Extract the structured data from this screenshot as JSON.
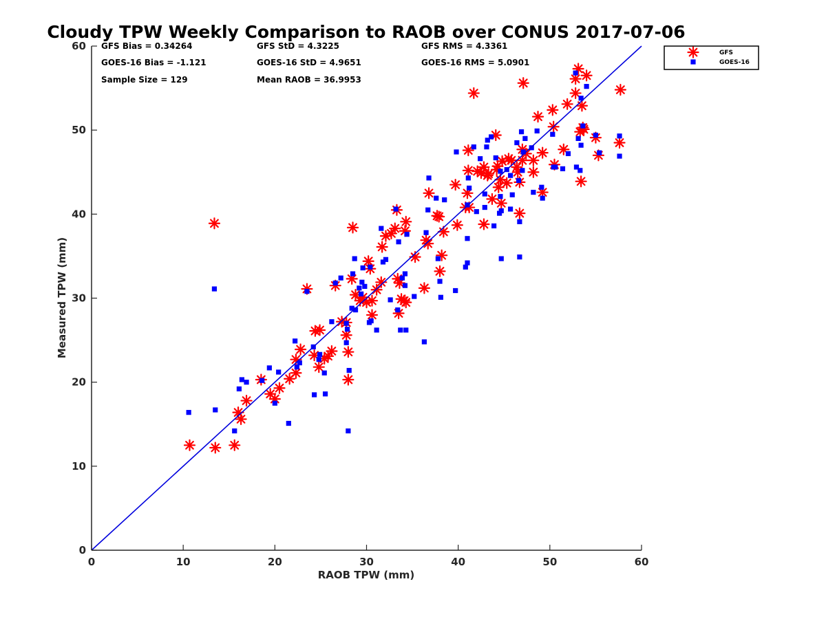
{
  "chart_data": {
    "type": "scatter",
    "title": "Cloudy TPW Weekly Comparison to RAOB over CONUS 2017-07-06",
    "xlabel": "RAOB TPW (mm)",
    "ylabel": "Measured TPW (mm)",
    "xlim": [
      0,
      60
    ],
    "ylim": [
      0,
      60
    ],
    "xticks": [
      0,
      10,
      20,
      30,
      40,
      50,
      60
    ],
    "yticks": [
      0,
      10,
      20,
      30,
      40,
      50,
      60
    ],
    "grid": false,
    "legend_position": "outside top-right",
    "reference_line": {
      "points": [
        [
          0,
          0
        ],
        [
          60,
          60
        ]
      ],
      "color": "#0000dd"
    },
    "stats": [
      [
        "GFS Bias = 0.34264",
        "GFS StD = 4.3225",
        "GFS RMS = 4.3361"
      ],
      [
        "GOES-16 Bias = -1.121",
        "GOES-16 StD = 4.9651",
        "GOES-16 RMS = 5.0901"
      ],
      [
        "Sample Size = 129",
        "Mean RAOB = 36.9953"
      ]
    ],
    "series": [
      {
        "name": "GFS",
        "marker": "asterisk",
        "color": "#ff0000",
        "points": [
          [
            10.7,
            12.5
          ],
          [
            13.5,
            12.2
          ],
          [
            15.6,
            12.5
          ],
          [
            13.4,
            38.9
          ],
          [
            16.0,
            16.4
          ],
          [
            16.3,
            15.6
          ],
          [
            16.9,
            17.8
          ],
          [
            18.5,
            20.3
          ],
          [
            19.5,
            18.6
          ],
          [
            20.0,
            18.0
          ],
          [
            20.5,
            19.3
          ],
          [
            21.6,
            20.4
          ],
          [
            22.3,
            21.1
          ],
          [
            22.3,
            22.7
          ],
          [
            22.8,
            23.9
          ],
          [
            23.5,
            31.1
          ],
          [
            24.3,
            23.2
          ],
          [
            24.4,
            26.1
          ],
          [
            24.9,
            26.2
          ],
          [
            24.8,
            21.8
          ],
          [
            25.4,
            22.8
          ],
          [
            25.8,
            23.1
          ],
          [
            26.2,
            23.7
          ],
          [
            26.6,
            31.5
          ],
          [
            27.3,
            27.2
          ],
          [
            27.8,
            27.1
          ],
          [
            27.8,
            25.6
          ],
          [
            28.0,
            23.6
          ],
          [
            28.0,
            20.3
          ],
          [
            28.5,
            38.4
          ],
          [
            28.4,
            32.3
          ],
          [
            28.8,
            30.4
          ],
          [
            29.3,
            29.7
          ],
          [
            29.6,
            30.1
          ],
          [
            30.0,
            29.5
          ],
          [
            30.2,
            34.4
          ],
          [
            30.4,
            33.5
          ],
          [
            30.6,
            29.7
          ],
          [
            30.6,
            28.0
          ],
          [
            31.1,
            31.0
          ],
          [
            31.6,
            31.9
          ],
          [
            31.7,
            36.1
          ],
          [
            32.1,
            37.4
          ],
          [
            32.7,
            37.7
          ],
          [
            33.1,
            38.3
          ],
          [
            33.3,
            40.5
          ],
          [
            33.4,
            32.3
          ],
          [
            33.5,
            28.2
          ],
          [
            33.6,
            31.8
          ],
          [
            33.8,
            29.9
          ],
          [
            34.1,
            29.7
          ],
          [
            34.2,
            38.0
          ],
          [
            34.3,
            39.1
          ],
          [
            34.3,
            29.5
          ],
          [
            35.3,
            34.9
          ],
          [
            36.3,
            31.2
          ],
          [
            36.5,
            36.9
          ],
          [
            36.7,
            36.5
          ],
          [
            36.8,
            42.5
          ],
          [
            37.7,
            39.8
          ],
          [
            37.9,
            39.7
          ],
          [
            38.0,
            33.2
          ],
          [
            38.2,
            35.1
          ],
          [
            38.4,
            37.9
          ],
          [
            39.7,
            43.5
          ],
          [
            39.9,
            38.7
          ],
          [
            40.8,
            40.8
          ],
          [
            41.0,
            42.5
          ],
          [
            41.1,
            45.2
          ],
          [
            41.1,
            47.6
          ],
          [
            41.2,
            40.8
          ],
          [
            41.7,
            54.4
          ],
          [
            42.1,
            45.1
          ],
          [
            42.5,
            44.9
          ],
          [
            42.8,
            38.8
          ],
          [
            42.8,
            45.6
          ],
          [
            43.2,
            44.6
          ],
          [
            43.3,
            44.8
          ],
          [
            43.7,
            41.8
          ],
          [
            44.1,
            49.4
          ],
          [
            44.2,
            45.3
          ],
          [
            44.3,
            45.7
          ],
          [
            44.4,
            43.2
          ],
          [
            44.6,
            44.1
          ],
          [
            44.7,
            41.3
          ],
          [
            44.8,
            46.3
          ],
          [
            45.3,
            43.7
          ],
          [
            45.5,
            46.6
          ],
          [
            45.8,
            46.4
          ],
          [
            46.4,
            45.6
          ],
          [
            46.5,
            45.0
          ],
          [
            46.7,
            43.8
          ],
          [
            46.7,
            40.1
          ],
          [
            47.0,
            46.4
          ],
          [
            47.0,
            47.7
          ],
          [
            47.1,
            55.6
          ],
          [
            47.4,
            47.2
          ],
          [
            48.2,
            46.4
          ],
          [
            48.2,
            45.0
          ],
          [
            48.7,
            51.6
          ],
          [
            49.2,
            42.6
          ],
          [
            49.2,
            47.3
          ],
          [
            50.3,
            52.4
          ],
          [
            50.4,
            50.4
          ],
          [
            50.5,
            45.9
          ],
          [
            51.5,
            47.7
          ],
          [
            51.9,
            53.1
          ],
          [
            52.8,
            56.1
          ],
          [
            52.8,
            54.4
          ],
          [
            53.1,
            57.3
          ],
          [
            53.3,
            49.8
          ],
          [
            53.4,
            43.9
          ],
          [
            53.5,
            52.9
          ],
          [
            53.6,
            50.3
          ],
          [
            53.7,
            50.1
          ],
          [
            54.0,
            56.5
          ],
          [
            55.0,
            49.1
          ],
          [
            55.3,
            47.0
          ],
          [
            57.6,
            48.5
          ],
          [
            57.7,
            54.8
          ]
        ]
      },
      {
        "name": "GOES-16",
        "marker": "square",
        "color": "#0000ff",
        "points": [
          [
            10.6,
            16.4
          ],
          [
            13.4,
            31.1
          ],
          [
            13.5,
            16.7
          ],
          [
            15.6,
            14.2
          ],
          [
            16.1,
            19.2
          ],
          [
            16.4,
            20.3
          ],
          [
            16.9,
            20.0
          ],
          [
            18.6,
            20.2
          ],
          [
            19.4,
            21.7
          ],
          [
            20.0,
            17.5
          ],
          [
            20.4,
            21.2
          ],
          [
            21.5,
            15.1
          ],
          [
            22.2,
            24.9
          ],
          [
            22.4,
            21.8
          ],
          [
            22.7,
            22.3
          ],
          [
            23.5,
            30.8
          ],
          [
            24.2,
            24.2
          ],
          [
            24.3,
            18.5
          ],
          [
            24.8,
            22.7
          ],
          [
            24.9,
            23.3
          ],
          [
            25.4,
            21.1
          ],
          [
            25.5,
            18.6
          ],
          [
            26.2,
            27.2
          ],
          [
            26.6,
            31.8
          ],
          [
            27.2,
            32.4
          ],
          [
            27.8,
            27.0
          ],
          [
            27.8,
            24.7
          ],
          [
            27.9,
            26.3
          ],
          [
            28.1,
            21.4
          ],
          [
            28.0,
            14.2
          ],
          [
            28.4,
            28.8
          ],
          [
            28.5,
            32.9
          ],
          [
            28.7,
            34.7
          ],
          [
            28.8,
            28.6
          ],
          [
            29.2,
            31.2
          ],
          [
            29.4,
            30.5
          ],
          [
            29.5,
            31.9
          ],
          [
            29.6,
            33.6
          ],
          [
            29.8,
            31.4
          ],
          [
            30.3,
            27.1
          ],
          [
            30.4,
            33.7
          ],
          [
            30.5,
            27.3
          ],
          [
            31.1,
            26.2
          ],
          [
            31.6,
            38.3
          ],
          [
            31.8,
            34.3
          ],
          [
            32.1,
            34.6
          ],
          [
            32.6,
            29.8
          ],
          [
            33.2,
            40.6
          ],
          [
            33.4,
            28.6
          ],
          [
            33.5,
            36.7
          ],
          [
            33.7,
            26.2
          ],
          [
            33.9,
            32.4
          ],
          [
            34.2,
            31.5
          ],
          [
            34.2,
            32.9
          ],
          [
            34.3,
            26.2
          ],
          [
            34.4,
            37.6
          ],
          [
            35.2,
            30.2
          ],
          [
            36.3,
            24.8
          ],
          [
            36.5,
            37.8
          ],
          [
            36.7,
            40.5
          ],
          [
            36.8,
            44.3
          ],
          [
            37.6,
            41.9
          ],
          [
            37.8,
            34.7
          ],
          [
            38.0,
            32.0
          ],
          [
            38.1,
            30.1
          ],
          [
            38.5,
            41.7
          ],
          [
            39.7,
            30.9
          ],
          [
            39.8,
            47.4
          ],
          [
            40.8,
            33.7
          ],
          [
            41.0,
            37.1
          ],
          [
            41.0,
            34.2
          ],
          [
            41.0,
            41.1
          ],
          [
            41.1,
            44.3
          ],
          [
            41.2,
            43.1
          ],
          [
            41.7,
            48.0
          ],
          [
            42.0,
            40.3
          ],
          [
            42.4,
            46.6
          ],
          [
            42.9,
            40.8
          ],
          [
            42.9,
            42.4
          ],
          [
            43.1,
            48.0
          ],
          [
            43.2,
            48.8
          ],
          [
            43.6,
            49.2
          ],
          [
            43.9,
            38.6
          ],
          [
            44.1,
            46.7
          ],
          [
            44.5,
            40.1
          ],
          [
            44.6,
            45.1
          ],
          [
            44.6,
            42.1
          ],
          [
            44.7,
            34.7
          ],
          [
            44.7,
            40.4
          ],
          [
            45.3,
            45.3
          ],
          [
            45.7,
            40.6
          ],
          [
            45.7,
            44.6
          ],
          [
            45.9,
            42.3
          ],
          [
            46.4,
            48.5
          ],
          [
            46.6,
            44.0
          ],
          [
            46.7,
            39.1
          ],
          [
            46.7,
            34.9
          ],
          [
            46.9,
            49.8
          ],
          [
            47.0,
            45.2
          ],
          [
            47.1,
            47.4
          ],
          [
            47.3,
            49.0
          ],
          [
            48.0,
            47.9
          ],
          [
            48.2,
            42.6
          ],
          [
            48.6,
            49.9
          ],
          [
            49.1,
            43.2
          ],
          [
            49.2,
            41.9
          ],
          [
            50.3,
            49.5
          ],
          [
            50.4,
            45.6
          ],
          [
            50.6,
            45.6
          ],
          [
            51.4,
            45.4
          ],
          [
            52.0,
            47.2
          ],
          [
            52.8,
            56.8
          ],
          [
            52.9,
            45.6
          ],
          [
            53.1,
            49.0
          ],
          [
            53.3,
            45.2
          ],
          [
            53.4,
            53.8
          ],
          [
            53.4,
            48.2
          ],
          [
            53.6,
            50.5
          ],
          [
            54.0,
            55.2
          ],
          [
            55.0,
            49.4
          ],
          [
            55.4,
            47.3
          ],
          [
            57.6,
            49.3
          ],
          [
            57.6,
            46.9
          ]
        ]
      }
    ]
  }
}
